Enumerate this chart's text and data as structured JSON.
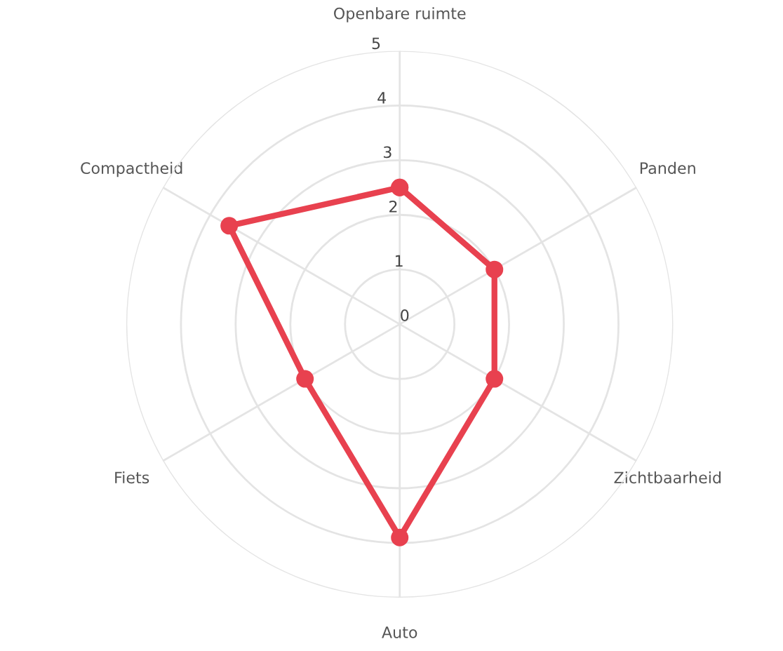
{
  "chart_data": {
    "type": "radar",
    "categories": [
      "Openbare ruimte",
      "Panden",
      "Zichtbaarheid",
      "Auto",
      "Fiets",
      "Compactheid"
    ],
    "series": [
      {
        "color": "#e8414f",
        "values": [
          2.5,
          2,
          2,
          3.9,
          2,
          3.6
        ]
      }
    ],
    "ylim": [
      0,
      5
    ],
    "yticks": [
      0,
      1,
      2,
      3,
      4,
      5
    ],
    "grid": true,
    "marker": "circle",
    "line_style": "solid"
  }
}
